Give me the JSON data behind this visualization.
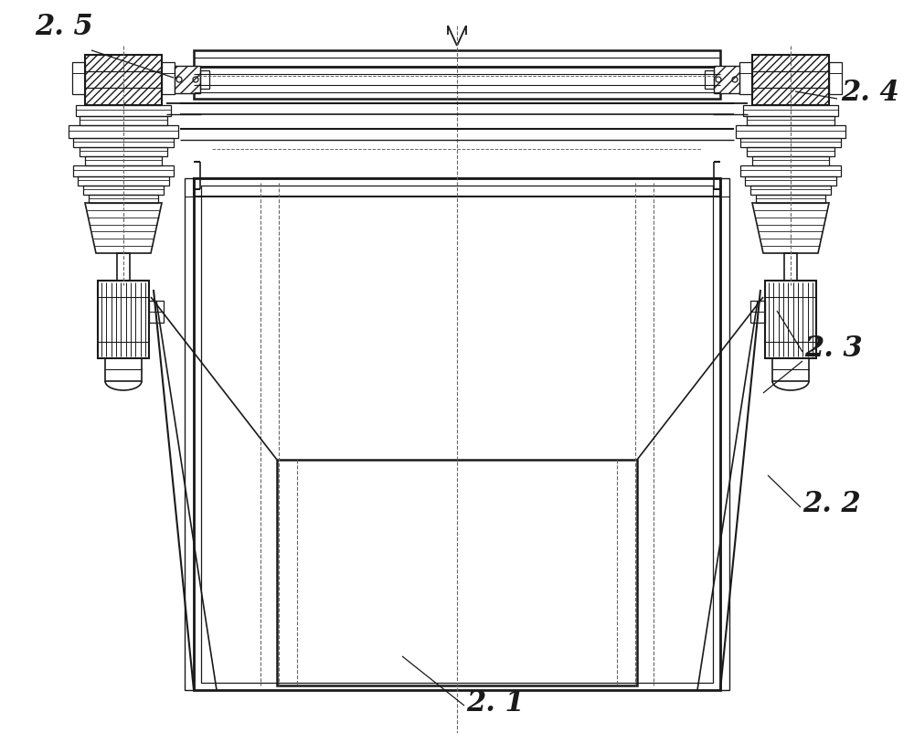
{
  "bg_color": "#ffffff",
  "line_color": "#1a1a1a",
  "dashed_color": "#666666",
  "label_color": "#1a1a1a",
  "figsize": [
    10.0,
    8.02
  ],
  "dpi": 100
}
